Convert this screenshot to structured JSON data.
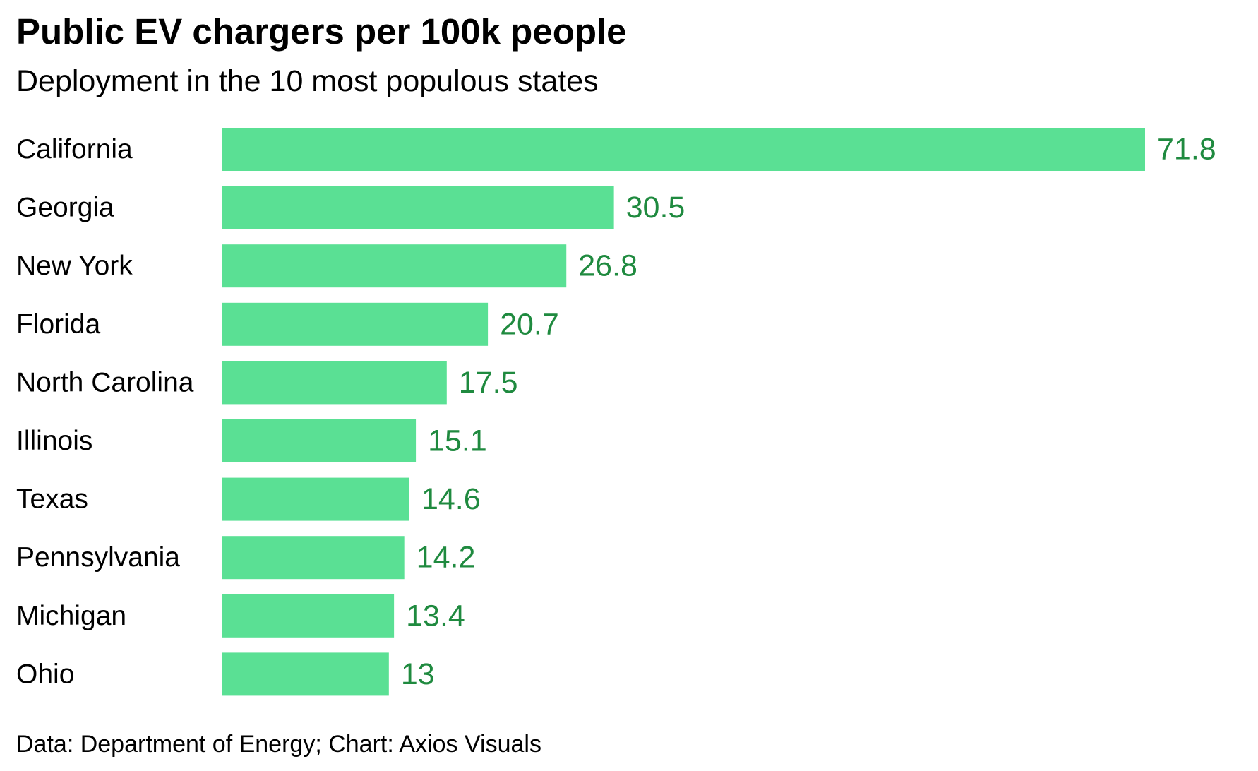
{
  "chart_data": {
    "type": "bar",
    "orientation": "horizontal",
    "title": "Public EV chargers per 100k people",
    "subtitle": "Deployment in the 10 most populous states",
    "source": "Data: Department of Energy; Chart: Axios Visuals",
    "categories": [
      "California",
      "Georgia",
      "New York",
      "Florida",
      "North Carolina",
      "Illinois",
      "Texas",
      "Pennsylvania",
      "Michigan",
      "Ohio"
    ],
    "values": [
      71.8,
      30.5,
      26.8,
      20.7,
      17.5,
      15.1,
      14.6,
      14.2,
      13.4,
      13
    ],
    "value_labels": [
      "71.8",
      "30.5",
      "26.8",
      "20.7",
      "17.5",
      "15.1",
      "14.6",
      "14.2",
      "13.4",
      "13"
    ],
    "xlim": [
      0,
      71.8
    ],
    "grid": false,
    "legend": "none",
    "colors": {
      "bar": "#5ae094",
      "value_label": "#1f8a3f",
      "text": "#000000"
    }
  }
}
